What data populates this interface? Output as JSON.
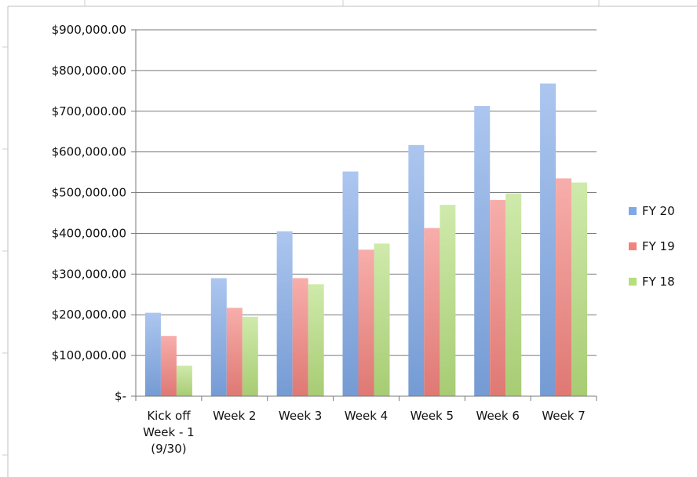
{
  "chart_data": {
    "type": "bar",
    "categories": [
      [
        "Kick off",
        "Week - 1",
        "(9/30)"
      ],
      [
        "Week 2"
      ],
      [
        "Week 3"
      ],
      [
        "Week 4"
      ],
      [
        "Week 5"
      ],
      [
        "Week 6"
      ],
      [
        "Week 7"
      ]
    ],
    "series": [
      {
        "name": "FY 20",
        "color": "#7FA8E6",
        "values": [
          205000,
          290000,
          405000,
          552000,
          617000,
          713000,
          768000
        ]
      },
      {
        "name": "FY 19",
        "color": "#F2827D",
        "values": [
          148000,
          217000,
          290000,
          360000,
          413000,
          482000,
          535000
        ]
      },
      {
        "name": "FY 18",
        "color": "#B5DE7D",
        "values": [
          75000,
          195000,
          275000,
          375000,
          470000,
          498000,
          525000
        ]
      }
    ],
    "y_ticks": [
      {
        "value": 900000,
        "label": "$900,000.00"
      },
      {
        "value": 800000,
        "label": "$800,000.00"
      },
      {
        "value": 700000,
        "label": "$700,000.00"
      },
      {
        "value": 600000,
        "label": "$600,000.00"
      },
      {
        "value": 500000,
        "label": "$500,000.00"
      },
      {
        "value": 400000,
        "label": "$400,000.00"
      },
      {
        "value": 300000,
        "label": "$300,000.00"
      },
      {
        "value": 200000,
        "label": "$200,000.00"
      },
      {
        "value": 100000,
        "label": "$100,000.00"
      },
      {
        "value": 0,
        "label": "$-"
      }
    ],
    "ylim": [
      0,
      900000
    ],
    "grid": true,
    "legend_position": "right"
  }
}
